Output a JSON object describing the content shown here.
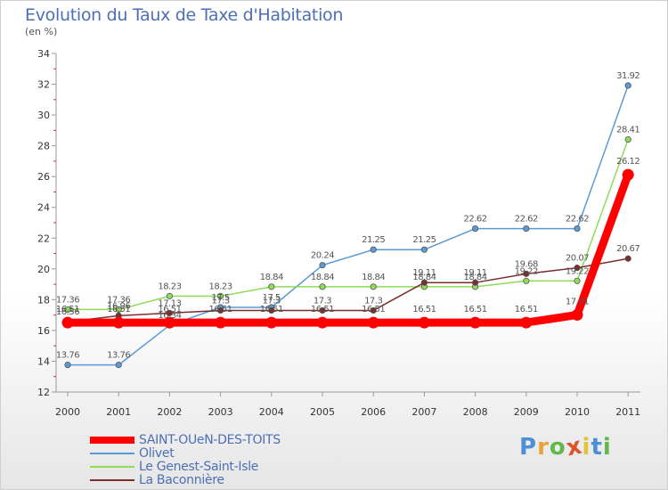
{
  "chart_data": {
    "type": "line",
    "title": "Evolution du Taux de Taxe d'Habitation",
    "ylabel": "(en %)",
    "xlabel": "",
    "x": [
      "2000",
      "2001",
      "2002",
      "2003",
      "2004",
      "2005",
      "2006",
      "2007",
      "2008",
      "2009",
      "2010",
      "2011"
    ],
    "ylim": [
      12,
      34
    ],
    "yticks": [
      "12",
      "14",
      "16",
      "18",
      "20",
      "22",
      "24",
      "26",
      "28",
      "30",
      "32",
      "34"
    ],
    "grid": false,
    "legend_position": "bottom-left",
    "series": [
      {
        "name": "SAINT-OUeN-DES-TOITS",
        "color": "#ff0000",
        "values": [
          16.51,
          16.51,
          16.51,
          16.51,
          16.51,
          16.51,
          16.51,
          16.51,
          16.51,
          16.51,
          17.01,
          26.12
        ],
        "labels": [
          "16.51",
          "16.51",
          "16.51",
          "16.51",
          "16.51",
          "16.51",
          "16.51",
          "16.51",
          "16.51",
          "16.51",
          "17.01",
          "26.12"
        ]
      },
      {
        "name": "Olivet",
        "color": "#5b9bd5",
        "values": [
          13.76,
          13.76,
          16.34,
          17.5,
          17.5,
          20.24,
          21.25,
          21.25,
          22.62,
          22.62,
          22.62,
          31.92
        ],
        "labels": [
          "13.76",
          "13.76",
          "16.34",
          "17.5",
          "17.5",
          "20.24",
          "21.25",
          "21.25",
          "22.62",
          "22.62",
          "22.62",
          "31.92"
        ]
      },
      {
        "name": "Le Genest-Saint-Isle",
        "color": "#8fdc5a",
        "values": [
          17.36,
          17.36,
          18.23,
          18.23,
          18.84,
          18.84,
          18.84,
          18.84,
          18.84,
          19.22,
          19.22,
          28.41
        ],
        "labels": [
          "17.36",
          "17.36",
          "18.23",
          "18.23",
          "18.84",
          "18.84",
          "18.84",
          "18.84",
          "18.84",
          "19.22",
          "19.22",
          "28.41"
        ]
      },
      {
        "name": "La Baconnière",
        "color": "#7a2e2e",
        "values": [
          16.56,
          16.96,
          17.13,
          17.3,
          17.3,
          17.3,
          17.3,
          19.11,
          19.11,
          19.68,
          20.07,
          20.67
        ],
        "labels": [
          "16.56",
          "16.96",
          "17.13",
          "17.3",
          "17.3",
          "17.3",
          "17.3",
          "19.11",
          "19.11",
          "19.68",
          "20.07",
          "20.67"
        ]
      }
    ]
  },
  "brand": {
    "letters": [
      "P",
      "r",
      "o",
      "x",
      "i",
      "t",
      "i"
    ],
    "colors": [
      "#4e8fd6",
      "#e8a33c",
      "#63b84a",
      "#d9542b",
      "#e0c53a",
      "#4e8fd6",
      "#63b84a"
    ]
  }
}
